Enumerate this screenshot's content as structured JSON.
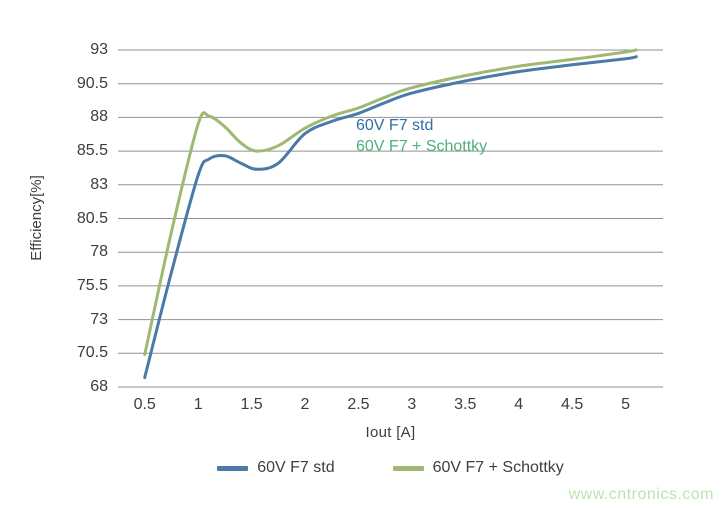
{
  "watermark": {
    "text": "www.cntronics.com",
    "color": "#b7e0a8"
  },
  "colors": {
    "grid": "#929292",
    "axis_text": "#3d3d3d",
    "series_std": "#4a7aa8",
    "series_schottky": "#9fb873",
    "annotation_std": "#2e6fad",
    "annotation_schottky": "#4cb07e",
    "background": "#ffffff"
  },
  "chart_data": {
    "type": "line",
    "title": "",
    "xlabel": "Iout [A]",
    "ylabel": "Efficiency[%]",
    "xlim": [
      0.25,
      5.35
    ],
    "ylim": [
      68,
      93
    ],
    "x_ticks": [
      0.5,
      1,
      1.5,
      2,
      2.5,
      3,
      3.5,
      4,
      4.5,
      5
    ],
    "y_ticks": [
      68,
      70.5,
      73,
      75.5,
      78,
      80.5,
      83,
      85.5,
      88,
      90.5,
      93
    ],
    "grid": "horizontal",
    "legend_position": "bottom",
    "x": [
      0.5,
      0.75,
      1.0,
      1.1,
      1.25,
      1.4,
      1.55,
      1.75,
      2.0,
      2.25,
      2.5,
      2.75,
      3.0,
      3.5,
      4.0,
      4.5,
      5.0,
      5.1
    ],
    "series": [
      {
        "name": "60V F7 std",
        "color": "#4a7aa8",
        "values": [
          68.7,
          76.5,
          83.7,
          84.9,
          85.15,
          84.6,
          84.15,
          84.6,
          86.8,
          87.7,
          88.3,
          89.1,
          89.8,
          90.7,
          91.4,
          91.9,
          92.35,
          92.5
        ]
      },
      {
        "name": "60V F7 + Schottky",
        "color": "#9fb873",
        "values": [
          70.4,
          79.5,
          87.5,
          88.1,
          87.3,
          86.1,
          85.5,
          85.9,
          87.2,
          88.1,
          88.7,
          89.5,
          90.2,
          91.1,
          91.8,
          92.3,
          92.85,
          93.0
        ]
      }
    ],
    "annotations": [
      {
        "text": "60V F7 std",
        "color": "#2e6fad"
      },
      {
        "text": "60V F7 + Schottky",
        "color": "#4cb07e"
      }
    ]
  }
}
